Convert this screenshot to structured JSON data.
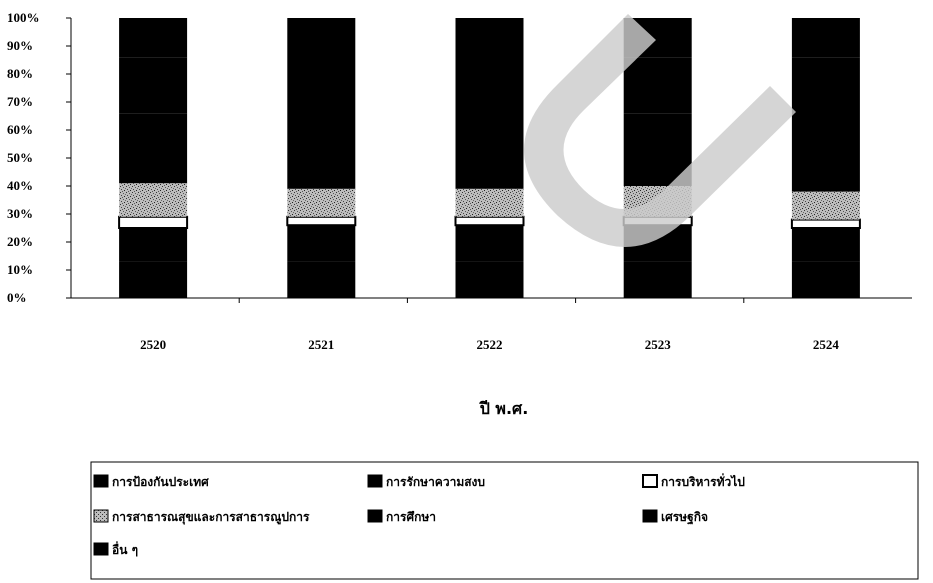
{
  "chart_data": {
    "type": "bar",
    "stacked": "percent",
    "categories": [
      "2520",
      "2521",
      "2522",
      "2523",
      "2524"
    ],
    "xlabel": "ปี พ.ศ.",
    "ylabel": "",
    "title": "",
    "ylim": [
      0,
      100
    ],
    "yticks": [
      "0%",
      "10%",
      "20%",
      "30%",
      "40%",
      "50%",
      "60%",
      "70%",
      "80%",
      "90%",
      "100%"
    ],
    "grid": false,
    "legend_position": "bottom",
    "series": [
      {
        "name": "การป้องกันประเทศ",
        "values": [
          13,
          13,
          13,
          13,
          13
        ],
        "pattern": "black"
      },
      {
        "name": "การรักษาความสงบ",
        "values": [
          12,
          13,
          13,
          13,
          12
        ],
        "pattern": "black"
      },
      {
        "name": "การบริหารทั่วไป",
        "values": [
          4,
          3,
          3,
          3,
          3
        ],
        "pattern": "white"
      },
      {
        "name": "การสาธารณสุขและการสาธารณูปการ",
        "values": [
          12,
          10,
          10,
          11,
          10
        ],
        "pattern": "speckle"
      },
      {
        "name": "การศึกษา",
        "values": [
          25,
          26,
          26,
          26,
          27
        ],
        "pattern": "black"
      },
      {
        "name": "เศรษฐกิจ",
        "values": [
          20,
          20,
          20,
          20,
          21
        ],
        "pattern": "black"
      },
      {
        "name": "อื่น ๆ",
        "values": [
          14,
          15,
          15,
          14,
          14
        ],
        "pattern": "black"
      }
    ]
  }
}
